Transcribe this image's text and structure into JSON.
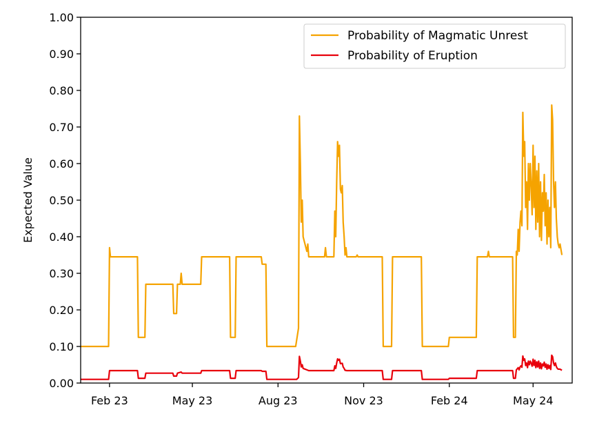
{
  "chart_data": {
    "type": "line",
    "title": "",
    "xlabel": "",
    "ylabel": "Expected Value",
    "ylim": [
      0,
      1.0
    ],
    "xlim": [
      "2023-01-01",
      "2024-06-12"
    ],
    "grid": false,
    "legend_position": "top-right",
    "x_ticks": [
      {
        "date": "2023-02-01",
        "label": "Feb 23"
      },
      {
        "date": "2023-05-01",
        "label": "May 23"
      },
      {
        "date": "2023-08-01",
        "label": "Aug 23"
      },
      {
        "date": "2023-11-01",
        "label": "Nov 23"
      },
      {
        "date": "2024-02-01",
        "label": "Feb 24"
      },
      {
        "date": "2024-05-01",
        "label": "May 24"
      }
    ],
    "y_ticks": [
      {
        "value": 0.0,
        "label": "0.00"
      },
      {
        "value": 0.1,
        "label": "0.10"
      },
      {
        "value": 0.2,
        "label": "0.20"
      },
      {
        "value": 0.3,
        "label": "0.30"
      },
      {
        "value": 0.4,
        "label": "0.40"
      },
      {
        "value": 0.5,
        "label": "0.50"
      },
      {
        "value": 0.6,
        "label": "0.60"
      },
      {
        "value": 0.7,
        "label": "0.70"
      },
      {
        "value": 0.8,
        "label": "0.80"
      },
      {
        "value": 0.9,
        "label": "0.90"
      },
      {
        "value": 1.0,
        "label": "1.00"
      }
    ],
    "series": [
      {
        "name": "Probability of Magmatic Unrest",
        "color": "#f5a300",
        "points": [
          [
            "2023-01-01",
            0.1
          ],
          [
            "2023-01-31",
            0.1
          ],
          [
            "2023-02-01",
            0.37
          ],
          [
            "2023-02-02",
            0.345
          ],
          [
            "2023-03-03",
            0.345
          ],
          [
            "2023-03-04",
            0.125
          ],
          [
            "2023-03-11",
            0.125
          ],
          [
            "2023-03-12",
            0.27
          ],
          [
            "2023-04-10",
            0.27
          ],
          [
            "2023-04-11",
            0.19
          ],
          [
            "2023-04-14",
            0.19
          ],
          [
            "2023-04-15",
            0.27
          ],
          [
            "2023-04-18",
            0.27
          ],
          [
            "2023-04-19",
            0.3
          ],
          [
            "2023-04-20",
            0.27
          ],
          [
            "2023-05-10",
            0.27
          ],
          [
            "2023-05-11",
            0.345
          ],
          [
            "2023-06-10",
            0.345
          ],
          [
            "2023-06-11",
            0.125
          ],
          [
            "2023-06-16",
            0.125
          ],
          [
            "2023-06-17",
            0.345
          ],
          [
            "2023-07-14",
            0.345
          ],
          [
            "2023-07-15",
            0.325
          ],
          [
            "2023-07-19",
            0.325
          ],
          [
            "2023-07-20",
            0.1
          ],
          [
            "2023-08-20",
            0.1
          ],
          [
            "2023-08-23",
            0.15
          ],
          [
            "2023-08-24",
            0.73
          ],
          [
            "2023-08-25",
            0.6
          ],
          [
            "2023-08-26",
            0.44
          ],
          [
            "2023-08-27",
            0.5
          ],
          [
            "2023-08-28",
            0.4
          ],
          [
            "2023-08-30",
            0.38
          ],
          [
            "2023-09-01",
            0.36
          ],
          [
            "2023-09-02",
            0.38
          ],
          [
            "2023-09-03",
            0.345
          ],
          [
            "2023-09-20",
            0.345
          ],
          [
            "2023-09-21",
            0.37
          ],
          [
            "2023-09-22",
            0.345
          ],
          [
            "2023-09-30",
            0.345
          ],
          [
            "2023-10-01",
            0.47
          ],
          [
            "2023-10-02",
            0.4
          ],
          [
            "2023-10-03",
            0.55
          ],
          [
            "2023-10-04",
            0.66
          ],
          [
            "2023-10-05",
            0.62
          ],
          [
            "2023-10-06",
            0.65
          ],
          [
            "2023-10-07",
            0.53
          ],
          [
            "2023-10-08",
            0.52
          ],
          [
            "2023-10-09",
            0.54
          ],
          [
            "2023-10-10",
            0.44
          ],
          [
            "2023-10-11",
            0.4
          ],
          [
            "2023-10-12",
            0.35
          ],
          [
            "2023-10-13",
            0.37
          ],
          [
            "2023-10-14",
            0.345
          ],
          [
            "2023-10-24",
            0.345
          ],
          [
            "2023-10-25",
            0.35
          ],
          [
            "2023-10-26",
            0.345
          ],
          [
            "2023-11-21",
            0.345
          ],
          [
            "2023-11-22",
            0.1
          ],
          [
            "2023-12-01",
            0.1
          ],
          [
            "2023-12-02",
            0.345
          ],
          [
            "2024-01-02",
            0.345
          ],
          [
            "2024-01-03",
            0.1
          ],
          [
            "2024-01-31",
            0.1
          ],
          [
            "2024-02-01",
            0.125
          ],
          [
            "2024-03-01",
            0.125
          ],
          [
            "2024-03-02",
            0.345
          ],
          [
            "2024-03-13",
            0.345
          ],
          [
            "2024-03-14",
            0.36
          ],
          [
            "2024-03-15",
            0.345
          ],
          [
            "2024-04-09",
            0.345
          ],
          [
            "2024-04-10",
            0.125
          ],
          [
            "2024-04-12",
            0.125
          ],
          [
            "2024-04-13",
            0.36
          ],
          [
            "2024-04-14",
            0.35
          ],
          [
            "2024-04-15",
            0.42
          ],
          [
            "2024-04-16",
            0.36
          ],
          [
            "2024-04-17",
            0.44
          ],
          [
            "2024-04-18",
            0.47
          ],
          [
            "2024-04-19",
            0.43
          ],
          [
            "2024-04-20",
            0.74
          ],
          [
            "2024-04-21",
            0.62
          ],
          [
            "2024-04-22",
            0.66
          ],
          [
            "2024-04-23",
            0.48
          ],
          [
            "2024-04-24",
            0.55
          ],
          [
            "2024-04-25",
            0.42
          ],
          [
            "2024-04-26",
            0.6
          ],
          [
            "2024-04-27",
            0.5
          ],
          [
            "2024-04-28",
            0.6
          ],
          [
            "2024-04-29",
            0.54
          ],
          [
            "2024-04-30",
            0.46
          ],
          [
            "2024-05-01",
            0.65
          ],
          [
            "2024-05-02",
            0.48
          ],
          [
            "2024-05-03",
            0.62
          ],
          [
            "2024-05-04",
            0.42
          ],
          [
            "2024-05-05",
            0.58
          ],
          [
            "2024-05-06",
            0.44
          ],
          [
            "2024-05-07",
            0.6
          ],
          [
            "2024-05-08",
            0.4
          ],
          [
            "2024-05-09",
            0.55
          ],
          [
            "2024-05-10",
            0.39
          ],
          [
            "2024-05-11",
            0.52
          ],
          [
            "2024-05-12",
            0.47
          ],
          [
            "2024-05-13",
            0.57
          ],
          [
            "2024-05-14",
            0.43
          ],
          [
            "2024-05-15",
            0.52
          ],
          [
            "2024-05-16",
            0.38
          ],
          [
            "2024-05-17",
            0.5
          ],
          [
            "2024-05-18",
            0.4
          ],
          [
            "2024-05-19",
            0.48
          ],
          [
            "2024-05-20",
            0.37
          ],
          [
            "2024-05-21",
            0.76
          ],
          [
            "2024-05-22",
            0.72
          ],
          [
            "2024-05-23",
            0.55
          ],
          [
            "2024-05-24",
            0.48
          ],
          [
            "2024-05-25",
            0.55
          ],
          [
            "2024-05-26",
            0.45
          ],
          [
            "2024-05-27",
            0.4
          ],
          [
            "2024-05-28",
            0.38
          ],
          [
            "2024-05-29",
            0.37
          ],
          [
            "2024-05-30",
            0.38
          ],
          [
            "2024-06-01",
            0.35
          ]
        ]
      },
      {
        "name": "Probability of Eruption",
        "color": "#e8000b",
        "points": [
          [
            "2023-01-01",
            0.01
          ],
          [
            "2023-01-31",
            0.01
          ],
          [
            "2023-02-01",
            0.034
          ],
          [
            "2023-03-03",
            0.034
          ],
          [
            "2023-03-04",
            0.013
          ],
          [
            "2023-03-11",
            0.013
          ],
          [
            "2023-03-12",
            0.027
          ],
          [
            "2023-04-10",
            0.027
          ],
          [
            "2023-04-11",
            0.019
          ],
          [
            "2023-04-14",
            0.019
          ],
          [
            "2023-04-15",
            0.027
          ],
          [
            "2023-04-19",
            0.03
          ],
          [
            "2023-04-20",
            0.027
          ],
          [
            "2023-05-10",
            0.027
          ],
          [
            "2023-05-11",
            0.034
          ],
          [
            "2023-06-10",
            0.034
          ],
          [
            "2023-06-11",
            0.013
          ],
          [
            "2023-06-16",
            0.013
          ],
          [
            "2023-06-17",
            0.034
          ],
          [
            "2023-07-14",
            0.034
          ],
          [
            "2023-07-15",
            0.032
          ],
          [
            "2023-07-19",
            0.032
          ],
          [
            "2023-07-20",
            0.01
          ],
          [
            "2023-08-21",
            0.01
          ],
          [
            "2023-08-23",
            0.015
          ],
          [
            "2023-08-24",
            0.073
          ],
          [
            "2023-08-25",
            0.06
          ],
          [
            "2023-08-26",
            0.044
          ],
          [
            "2023-08-27",
            0.05
          ],
          [
            "2023-08-28",
            0.04
          ],
          [
            "2023-09-01",
            0.036
          ],
          [
            "2023-09-03",
            0.034
          ],
          [
            "2023-09-30",
            0.034
          ],
          [
            "2023-10-01",
            0.047
          ],
          [
            "2023-10-02",
            0.04
          ],
          [
            "2023-10-03",
            0.055
          ],
          [
            "2023-10-04",
            0.066
          ],
          [
            "2023-10-05",
            0.062
          ],
          [
            "2023-10-06",
            0.065
          ],
          [
            "2023-10-07",
            0.053
          ],
          [
            "2023-10-09",
            0.054
          ],
          [
            "2023-10-10",
            0.044
          ],
          [
            "2023-10-11",
            0.04
          ],
          [
            "2023-10-12",
            0.035
          ],
          [
            "2023-10-14",
            0.034
          ],
          [
            "2023-11-21",
            0.034
          ],
          [
            "2023-11-22",
            0.01
          ],
          [
            "2023-12-01",
            0.01
          ],
          [
            "2023-12-02",
            0.034
          ],
          [
            "2024-01-02",
            0.034
          ],
          [
            "2024-01-03",
            0.01
          ],
          [
            "2024-01-31",
            0.01
          ],
          [
            "2024-02-01",
            0.013
          ],
          [
            "2024-03-01",
            0.013
          ],
          [
            "2024-03-02",
            0.034
          ],
          [
            "2024-04-09",
            0.034
          ],
          [
            "2024-04-10",
            0.013
          ],
          [
            "2024-04-12",
            0.013
          ],
          [
            "2024-04-13",
            0.036
          ],
          [
            "2024-04-15",
            0.042
          ],
          [
            "2024-04-16",
            0.036
          ],
          [
            "2024-04-17",
            0.044
          ],
          [
            "2024-04-18",
            0.047
          ],
          [
            "2024-04-19",
            0.043
          ],
          [
            "2024-04-20",
            0.074
          ],
          [
            "2024-04-21",
            0.062
          ],
          [
            "2024-04-22",
            0.066
          ],
          [
            "2024-04-23",
            0.048
          ],
          [
            "2024-04-24",
            0.055
          ],
          [
            "2024-04-25",
            0.042
          ],
          [
            "2024-04-26",
            0.06
          ],
          [
            "2024-04-27",
            0.05
          ],
          [
            "2024-04-28",
            0.06
          ],
          [
            "2024-04-29",
            0.054
          ],
          [
            "2024-04-30",
            0.046
          ],
          [
            "2024-05-01",
            0.065
          ],
          [
            "2024-05-02",
            0.048
          ],
          [
            "2024-05-03",
            0.062
          ],
          [
            "2024-05-04",
            0.042
          ],
          [
            "2024-05-05",
            0.058
          ],
          [
            "2024-05-06",
            0.044
          ],
          [
            "2024-05-07",
            0.06
          ],
          [
            "2024-05-08",
            0.04
          ],
          [
            "2024-05-09",
            0.055
          ],
          [
            "2024-05-10",
            0.039
          ],
          [
            "2024-05-11",
            0.052
          ],
          [
            "2024-05-12",
            0.047
          ],
          [
            "2024-05-13",
            0.057
          ],
          [
            "2024-05-14",
            0.043
          ],
          [
            "2024-05-15",
            0.052
          ],
          [
            "2024-05-16",
            0.038
          ],
          [
            "2024-05-17",
            0.05
          ],
          [
            "2024-05-18",
            0.04
          ],
          [
            "2024-05-19",
            0.048
          ],
          [
            "2024-05-20",
            0.037
          ],
          [
            "2024-05-21",
            0.076
          ],
          [
            "2024-05-22",
            0.072
          ],
          [
            "2024-05-23",
            0.055
          ],
          [
            "2024-05-24",
            0.048
          ],
          [
            "2024-05-25",
            0.055
          ],
          [
            "2024-05-26",
            0.045
          ],
          [
            "2024-05-27",
            0.04
          ],
          [
            "2024-05-28",
            0.038
          ],
          [
            "2024-05-30",
            0.038
          ],
          [
            "2024-06-01",
            0.035
          ]
        ]
      }
    ]
  }
}
